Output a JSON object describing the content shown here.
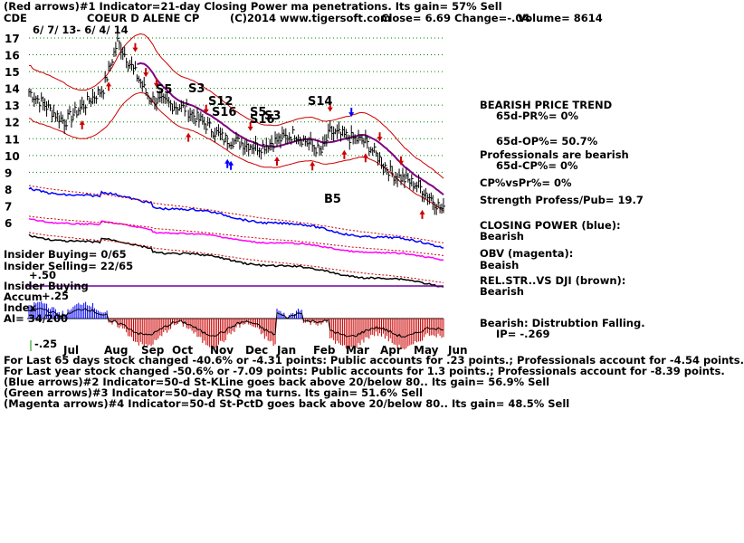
{
  "header": {
    "line1": "(Red arrows)#1 Indicator=21-day Closing Power ma penetrations. Its gain= 57% Sell",
    "ticker": "CDE",
    "company": "COEUR D ALENE CP",
    "copyright": "(C)2014 www.tigersoft.com",
    "close": "Close=  6.69",
    "change": "Change=-.04",
    "volume": "Volume= 8614",
    "date_range": "6/ 7/ 13- 6/ 4/ 14"
  },
  "right_panel": {
    "trend": "BEARISH PRICE TREND",
    "pr": "65d-PR%= 0%",
    "op": "65d-OP%= 50.7%",
    "prof_bearish": "Professionals are bearish",
    "cp": "65d-CP%= 0%",
    "cpvspr": "CP%vsPr%=  0%",
    "strength": "Strength Profess/Pub= 19.7",
    "closing_power_label": "CLOSING POWER (blue):",
    "closing_power_value": "Bearish",
    "obv_label": "OBV (magenta):",
    "obv_value": "Beaish",
    "relstr_label": "REL.STR..VS DJI (brown):",
    "relstr_value": "Bearish",
    "accum_label": "Bearish: Distrubtion Falling.",
    "ip": "IP= -.269"
  },
  "left_panel": {
    "insider_buying": "Insider Buying= 0/65",
    "insider_selling": "Insider Selling= 22/65",
    "plus50": "+.50",
    "insider_buying2": "Insider Buying",
    "accum": "Accum",
    "plus25": "+.25",
    "index": "Index",
    "ai": "AI= 34/200",
    "minus25": "-.25"
  },
  "footer": {
    "line1": "For Last 65 days stock changed -40.6% or -4.31 points:  Public accounts for  .23 points.;  Professionals account for -4.54 points.",
    "line2": "For Last year stock changed -50.6% or -7.09 points:  Public accounts for  1.3 points.;  Professionals account for -8.39 points.",
    "line3": "(Blue arrows)#2 Indicator=50-d St-KLine goes back above 20/below 80.. Its gain= 56.9% Sell",
    "line4": "(Green arrows)#3 Indicator=50-day RSQ ma turns. Its gain= 51.6% Sell",
    "line5": "(Magenta arrows)#4 Indicator=50-d St-PctD goes back above 20/below 80.. Its gain= 48.5% Sell"
  },
  "signal_labels": [
    "S5",
    "S3",
    "S12",
    "S16",
    "S5",
    "S16",
    "S3",
    "S14",
    "B5"
  ],
  "colors": {
    "price": "#000000",
    "bands": "#cc0000",
    "ma": "#800080",
    "closing_power": "#0000ff",
    "obv": "#ff00ff",
    "relstr": "#000000",
    "accum_pos": "#0000ff",
    "accum_neg": "#cc0000",
    "grid": "#008000"
  },
  "chart_data": {
    "type": "line",
    "xlabel": "",
    "ylabel": "",
    "ylim": [
      6,
      17
    ],
    "yticks": [
      6,
      7,
      8,
      9,
      10,
      11,
      12,
      13,
      14,
      15,
      16,
      17
    ],
    "month_labels": [
      "Jul",
      "Aug",
      "Sep",
      "Oct",
      "Nov",
      "Dec",
      "Jan",
      "Feb",
      "Mar",
      "Apr",
      "May",
      "Jun"
    ],
    "series": [
      {
        "name": "",
        "x": [
          "Jun",
          "Jul",
          "Aug",
          "Aug",
          "Sep",
          "Oct",
          "Nov",
          "Dec",
          "Jan",
          "Feb",
          "Feb",
          "Mar",
          "Apr",
          "May",
          "Jun"
        ],
        "values": [
          13.8,
          12.0,
          14.0,
          16.8,
          13.4,
          12.8,
          11.0,
          10.5,
          11.3,
          10.2,
          11.4,
          10.8,
          8.9,
          8.2,
          6.7
        ]
      }
    ]
  }
}
